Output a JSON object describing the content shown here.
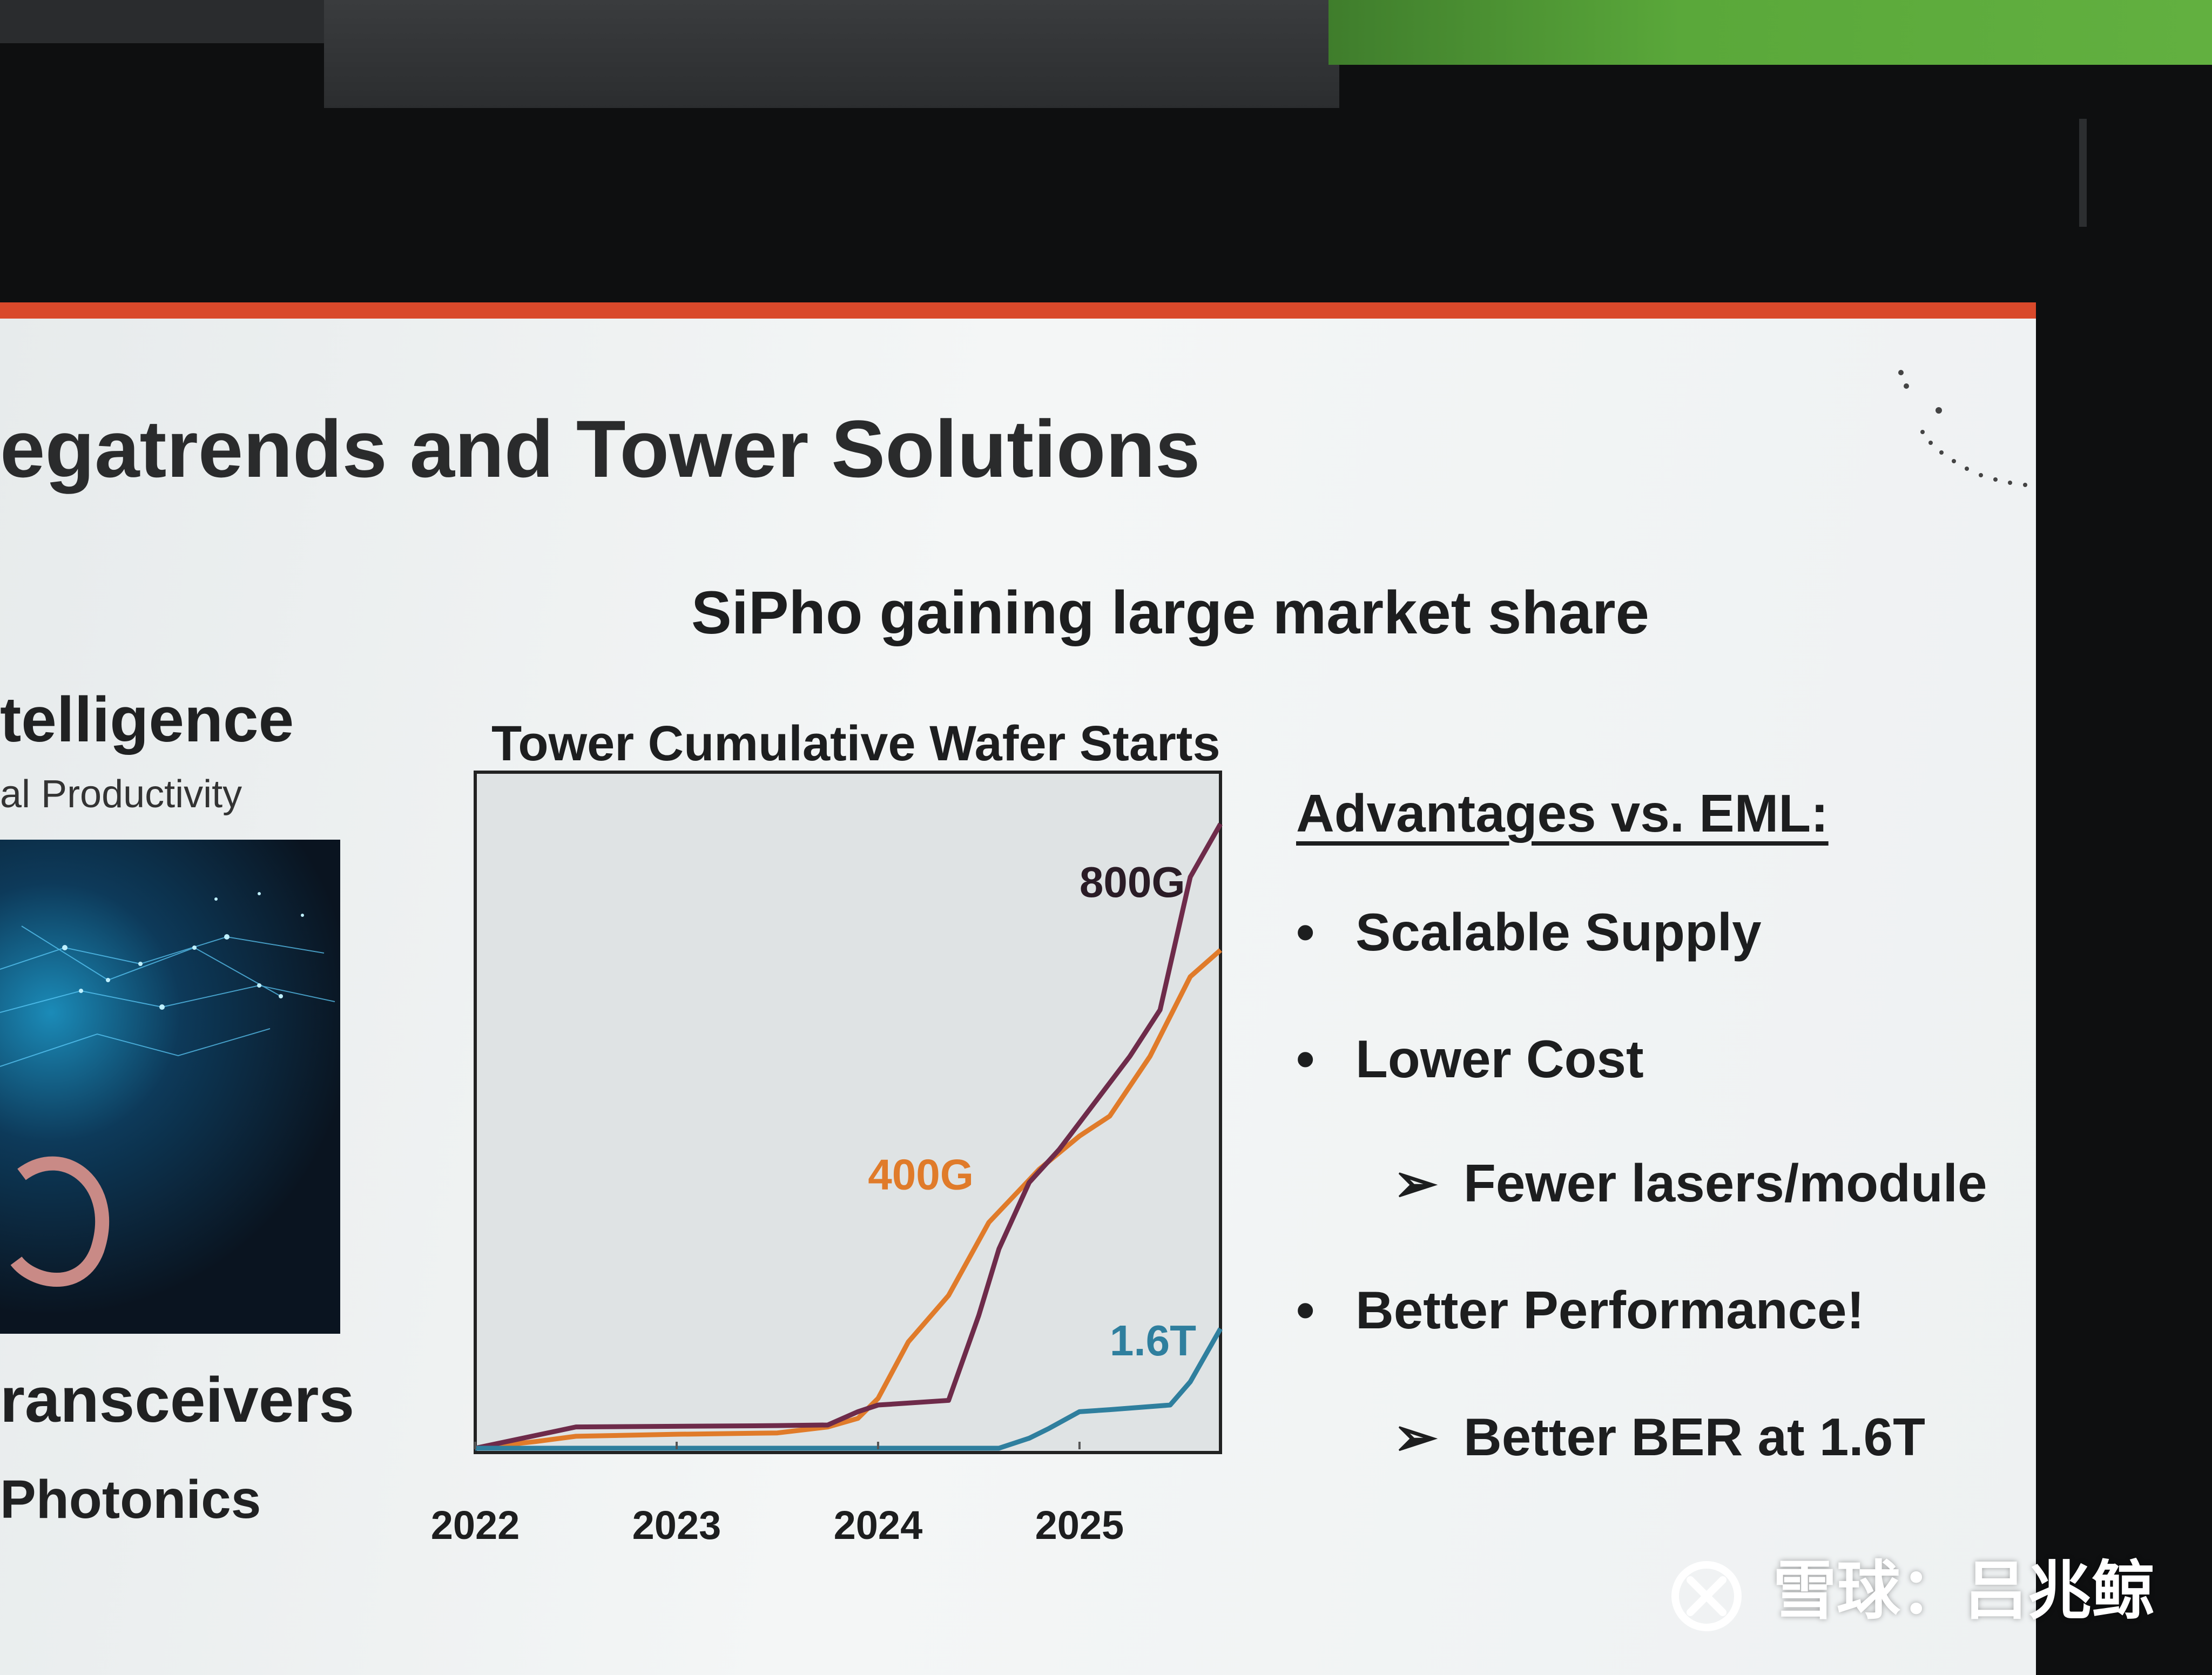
{
  "slide": {
    "title": "egatrends and Tower Solutions",
    "accent_color": "#d9492b"
  },
  "left_column": {
    "heading": "telligence",
    "subheading": "al Productivity",
    "bottom_heading_1": "ransceivers",
    "bottom_heading_2": "Photonics"
  },
  "chart_data": {
    "type": "line",
    "title": "SiPho gaining large market share",
    "subtitle": "Tower Cumulative Wafer Starts",
    "xlabel": "",
    "ylabel": "",
    "x_ticks": [
      "2022",
      "2023",
      "2024",
      "2025"
    ],
    "x_tick_values": [
      2022,
      2023,
      2024,
      2025
    ],
    "xlim": [
      2022,
      2025.7
    ],
    "ylim": [
      0,
      100
    ],
    "grid": false,
    "legend": "inline labels",
    "series": [
      {
        "name": "400G",
        "color": "#e07b2a",
        "x": [
          2022.0,
          2022.3,
          2022.5,
          2023.0,
          2023.5,
          2023.75,
          2023.9,
          2024.0,
          2024.15,
          2024.35,
          2024.55,
          2024.8,
          2025.0,
          2025.15,
          2025.35,
          2025.55,
          2025.7
        ],
        "y": [
          0,
          1,
          1.8,
          2.1,
          2.3,
          3.2,
          4.5,
          7.5,
          16,
          23,
          34,
          42,
          47,
          50,
          59,
          71,
          75
        ]
      },
      {
        "name": "800G",
        "color": "#6e2b4a",
        "x": [
          2022.0,
          2022.5,
          2023.0,
          2023.5,
          2023.75,
          2023.9,
          2024.0,
          2024.35,
          2024.5,
          2024.6,
          2024.75,
          2024.9,
          2025.0,
          2025.1,
          2025.25,
          2025.4,
          2025.55,
          2025.7
        ],
        "y": [
          0,
          3.2,
          3.3,
          3.4,
          3.5,
          5.5,
          6.5,
          7.2,
          20,
          30,
          40,
          45,
          49,
          53,
          59,
          66,
          86,
          94
        ]
      },
      {
        "name": "1.6T",
        "color": "#2f7f9e",
        "x": [
          2022.0,
          2024.6,
          2024.75,
          2024.85,
          2025.0,
          2025.15,
          2025.45,
          2025.55,
          2025.7
        ],
        "y": [
          0,
          0,
          1.5,
          3,
          5.5,
          5.8,
          6.5,
          10,
          18
        ]
      }
    ],
    "series_labels": {
      "800G": "800G",
      "400G": "400G",
      "1.6T": "1.6T"
    }
  },
  "advantages": {
    "header": "Advantages vs. EML:",
    "items": [
      {
        "mark": "•",
        "text": "Scalable Supply",
        "level": 0
      },
      {
        "mark": "•",
        "text": "Lower Cost",
        "level": 0
      },
      {
        "mark": "➢",
        "text": "Fewer lasers/module",
        "level": 1
      },
      {
        "mark": "•",
        "text": "Better Performance!",
        "level": 0
      },
      {
        "mark": "➢",
        "text": "Better BER at 1.6T",
        "level": 1
      }
    ]
  },
  "watermark": {
    "text": "雪球：吕兆鲸"
  }
}
